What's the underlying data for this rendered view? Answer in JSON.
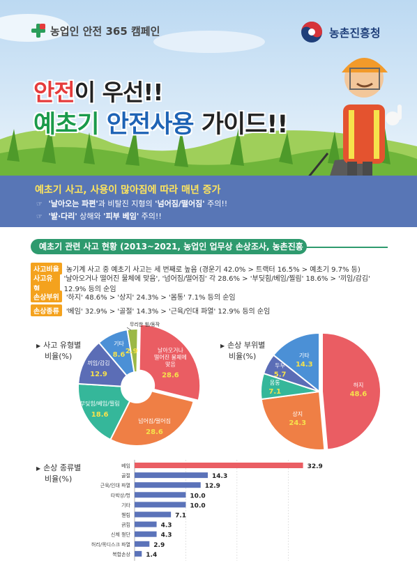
{
  "header": {
    "campaign": "농업인 안전 365 캠페인",
    "agency": "농촌진흥청"
  },
  "hero": {
    "title_line1_red": "안전",
    "title_line1_rest": "이 우선!!",
    "title_line2_green": "예초기",
    "title_line2_blue": "안전사용",
    "title_line2_rest": "가이드!!"
  },
  "banner": {
    "headline": "예초기 사고, 사용이 많아짐에 따라 매년 증가",
    "line1_bold1": "'날아오는 파편'",
    "line1_mid": "과 비탈진 지형의 ",
    "line1_bold2": "'넘어짐/떨어짐'",
    "line1_end": " 주의!!",
    "line2_bold1": "'발·다리'",
    "line2_mid": " 상해와 ",
    "line2_bold2": "'피부 베임'",
    "line2_end": " 주의!!"
  },
  "section": {
    "title": "예초기 관련 사고 현황 (2013~2021, 농업인 업무상 손상조사, 농촌진흥청)"
  },
  "facts": [
    {
      "tag": "사고비율",
      "text": "농기계 사고 중 예초기 사고는 세 번째로 높음 (경운기 42.0% > 트랙터 16.5% > 예초기 9.7% 등)"
    },
    {
      "tag": "사고유형",
      "text": "'날아오거나 떨어진 물체에 맞음', '넘어짐/떨어짐' 각 28.6% > '부딪힘/베임/찔림' 18.6% > '끼임/감김' 12.9% 등의 순임"
    },
    {
      "tag": "손상부위",
      "text": "'하지' 48.6% > '상지' 24.3% > '몸통' 7.1% 등의 순임"
    },
    {
      "tag": "손상종류",
      "text": "'베임' 32.9% > '골절' 14.3% > '근육/인대 파열' 12.9% 등의 순임"
    }
  ],
  "chart_titles": {
    "pie1": [
      "사고 유형별",
      "비율(%)"
    ],
    "pie2": [
      "손상 부위별",
      "비율(%)"
    ],
    "bar": [
      "손상 종류별",
      "비율(%)"
    ]
  },
  "colors": {
    "red": "#ea5d63",
    "orange": "#ef7f45",
    "teal": "#35b79a",
    "navy": "#5b6db6",
    "blue": "#4b90d6",
    "olive": "#9cb846",
    "bar_top": "#ea5d63",
    "bar_rest": "#5b73b9"
  },
  "chart_data": [
    {
      "type": "pie",
      "title": "사고 유형별 비율(%)",
      "slices": [
        {
          "label": "날아오거나 떨어진 물체에 맞음",
          "value": 28.6,
          "color": "#ea5d63"
        },
        {
          "label": "넘어짐/떨어짐",
          "value": 28.6,
          "color": "#ef7f45"
        },
        {
          "label": "부딪힘/베임/찔림",
          "value": 18.6,
          "color": "#35b79a"
        },
        {
          "label": "끼임/감김",
          "value": 12.9,
          "color": "#5b6db6"
        },
        {
          "label": "기타",
          "value": 8.6,
          "color": "#4b90d6"
        },
        {
          "label": "무리한 힘/동작",
          "value": 2.9,
          "color": "#9cb846"
        }
      ]
    },
    {
      "type": "pie",
      "title": "손상 부위별 비율(%)",
      "slices": [
        {
          "label": "하지",
          "value": 48.6,
          "color": "#ea5d63"
        },
        {
          "label": "상지",
          "value": 24.3,
          "color": "#ef7f45"
        },
        {
          "label": "몸통",
          "value": 7.1,
          "color": "#35b79a"
        },
        {
          "label": "두부",
          "value": 5.7,
          "color": "#5b6db6"
        },
        {
          "label": "기타",
          "value": 14.3,
          "color": "#4b90d6"
        }
      ]
    },
    {
      "type": "bar",
      "orientation": "horizontal",
      "title": "손상 종류별 비율(%)",
      "categories": [
        "베임",
        "골절",
        "근육/인대 파열",
        "타박상/멍",
        "기타",
        "찔림",
        "긁힘",
        "신체 절단",
        "허리/목디스크 파열",
        "복합손상"
      ],
      "values": [
        32.9,
        14.3,
        12.9,
        10.0,
        10.0,
        7.1,
        4.3,
        4.3,
        2.9,
        1.4
      ],
      "value_labels": [
        "32.9",
        "14.3",
        "12.9",
        "10.0",
        "10.0",
        "7.1",
        "4.3",
        "4.3",
        "2.9",
        "1.4"
      ],
      "grid": true
    }
  ]
}
